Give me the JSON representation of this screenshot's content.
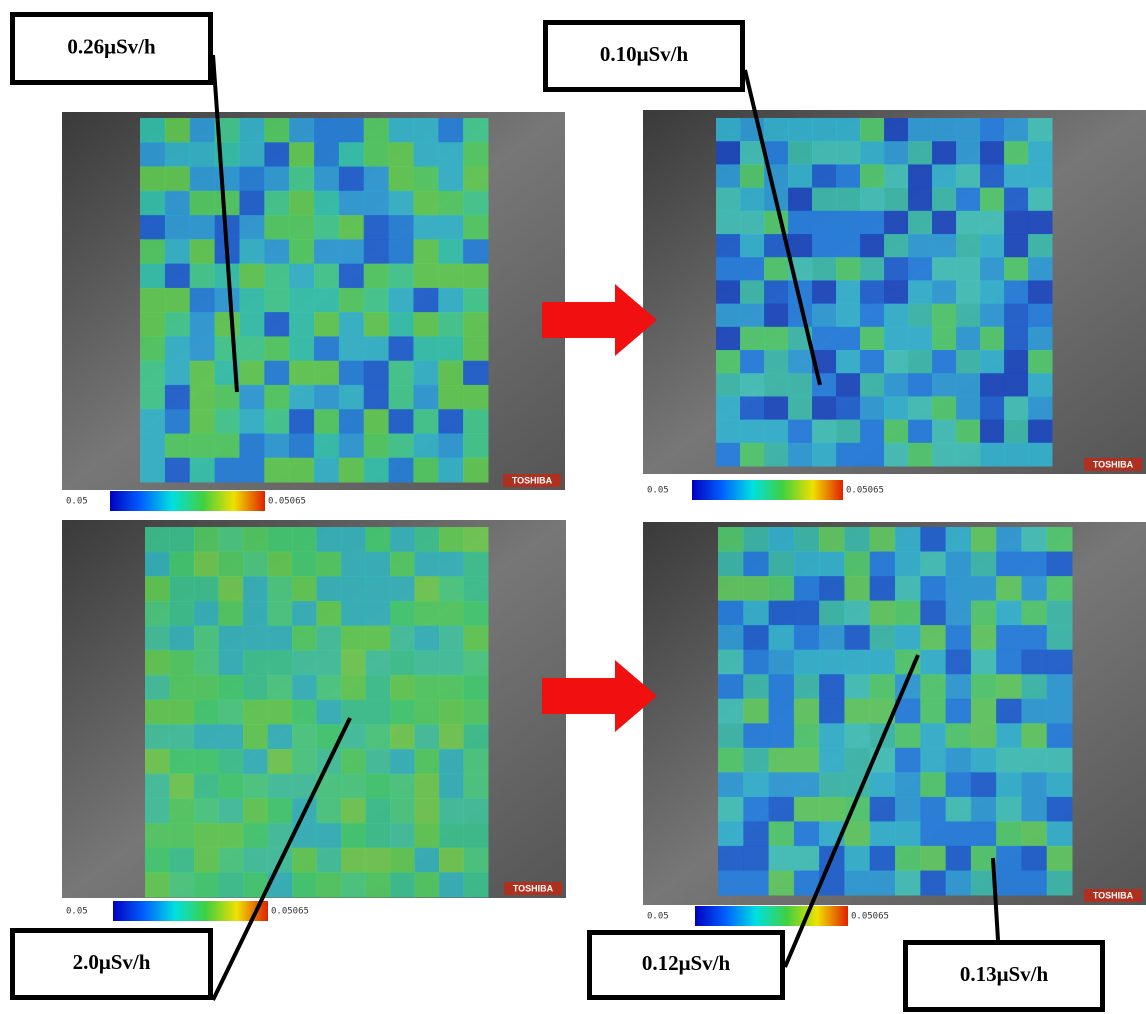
{
  "callouts": [
    {
      "label": "0.26μSv/h"
    },
    {
      "label": "0.10μSv/h"
    },
    {
      "label": "2.0μSv/h"
    },
    {
      "label": "0.12μSv/h"
    },
    {
      "label": "0.13μSv/h"
    }
  ],
  "panels": [
    {
      "scale_min": "0.05",
      "scale_max": "0.05065",
      "logo": "TOSHIBA"
    },
    {
      "scale_min": "0.05",
      "scale_max": "0.05065",
      "logo": "TOSHIBA"
    },
    {
      "scale_min": "0.05",
      "scale_max": "0.05065",
      "logo": "TOSHIBA"
    },
    {
      "scale_min": "0.05",
      "scale_max": "0.05065",
      "logo": "TOSHIBA"
    }
  ]
}
